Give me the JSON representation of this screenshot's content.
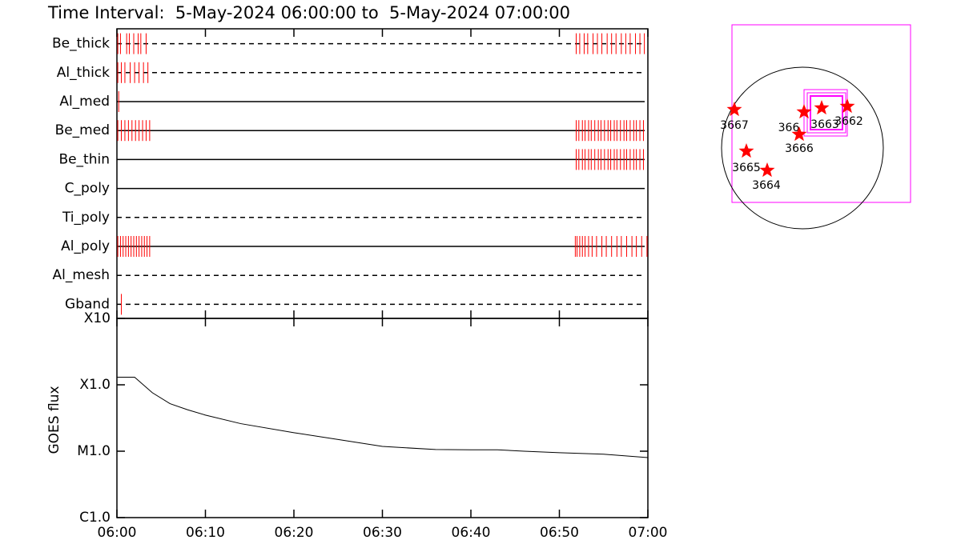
{
  "chart_data": [
    {
      "type": "timeline",
      "title": "Time Interval:  5-May-2024 06:00:00 to  5-May-2024 07:00:00",
      "categories": [
        "Be_thick",
        "Al_thick",
        "Al_med",
        "Be_med",
        "Be_thin",
        "C_poly",
        "Ti_poly",
        "Al_poly",
        "Al_mesh",
        "Gband"
      ],
      "styles": [
        "dashed",
        "dashed",
        "solid",
        "solid",
        "solid",
        "solid",
        "dashed",
        "solid",
        "dashed",
        "dashed"
      ],
      "color": "#ff0000",
      "xlim": [
        0,
        60
      ],
      "events": [
        [
          0.1,
          0.4,
          1.1,
          1.4,
          1.9,
          2.4,
          2.7,
          3.3,
          51.9,
          52.3,
          52.8,
          53.2,
          53.8,
          54.3,
          54.8,
          55.4,
          55.9,
          56.4,
          57.0,
          57.5,
          58.0,
          58.6,
          59.1,
          59.6
        ],
        [
          0.1,
          0.5,
          0.9,
          1.5,
          2.0,
          2.5,
          3.0,
          3.5
        ],
        [
          0.2
        ],
        [
          0.1,
          0.5,
          0.9,
          1.3,
          1.7,
          2.1,
          2.5,
          2.9,
          3.3,
          3.7,
          51.9,
          52.2,
          52.6,
          52.9,
          53.3,
          53.6,
          54.0,
          54.4,
          54.7,
          55.1,
          55.5,
          55.8,
          56.2,
          56.5,
          56.9,
          57.3,
          57.6,
          58.0,
          58.4,
          58.7,
          59.1,
          59.5
        ],
        [
          51.9,
          52.2,
          52.6,
          52.9,
          53.3,
          53.6,
          54.0,
          54.4,
          54.7,
          55.1,
          55.5,
          55.8,
          56.2,
          56.5,
          56.9,
          57.3,
          57.6,
          58.0,
          58.4,
          58.7,
          59.1,
          59.5
        ],
        [],
        [],
        [
          0.1,
          0.4,
          0.7,
          1.0,
          1.3,
          1.6,
          1.9,
          2.2,
          2.5,
          2.8,
          3.1,
          3.4,
          3.7,
          51.8,
          52.0,
          52.3,
          52.6,
          52.9,
          53.3,
          53.7,
          54.2,
          54.8,
          55.3,
          55.9,
          56.5,
          57.0,
          57.6,
          58.2,
          58.7,
          59.3,
          59.9
        ],
        [],
        [
          0.5
        ]
      ]
    },
    {
      "type": "line",
      "ylabel": "GOES flux",
      "color": "#000000",
      "log_y": true,
      "x": [
        0,
        2,
        4,
        6,
        8,
        10,
        14,
        20,
        25,
        30,
        36,
        40,
        43,
        46,
        50,
        55,
        60
      ],
      "values": [
        0.00013,
        0.00013,
        7.6e-05,
        5.2e-05,
        4.2e-05,
        3.5e-05,
        2.6e-05,
        1.9e-05,
        1.5e-05,
        1.18e-05,
        1.06e-05,
        1.05e-05,
        1.05e-05,
        1e-05,
        9.5e-06,
        9e-06,
        8e-06
      ],
      "xlim": [
        0,
        60
      ],
      "xticks": [
        {
          "value": 0,
          "label": "06:00"
        },
        {
          "value": 10,
          "label": "06:10"
        },
        {
          "value": 20,
          "label": "06:20"
        },
        {
          "value": 30,
          "label": "06:30"
        },
        {
          "value": 40,
          "label": "06:40"
        },
        {
          "value": 50,
          "label": "06:50"
        },
        {
          "value": 60,
          "label": "07:00"
        }
      ],
      "ylim": [
        1e-06,
        0.001
      ],
      "yticks": [
        {
          "value": 1e-06,
          "label": "C1.0"
        },
        {
          "value": 1e-05,
          "label": "M1.0"
        },
        {
          "value": 0.0001,
          "label": "X1.0"
        },
        {
          "value": 0.001,
          "label": "X10"
        }
      ]
    }
  ],
  "map": {
    "labels": [
      "3667",
      "366",
      "3663",
      "3662",
      "3666",
      "3665",
      "3664"
    ],
    "star_color": "#ff0000",
    "box_color": "#ff00ff"
  }
}
